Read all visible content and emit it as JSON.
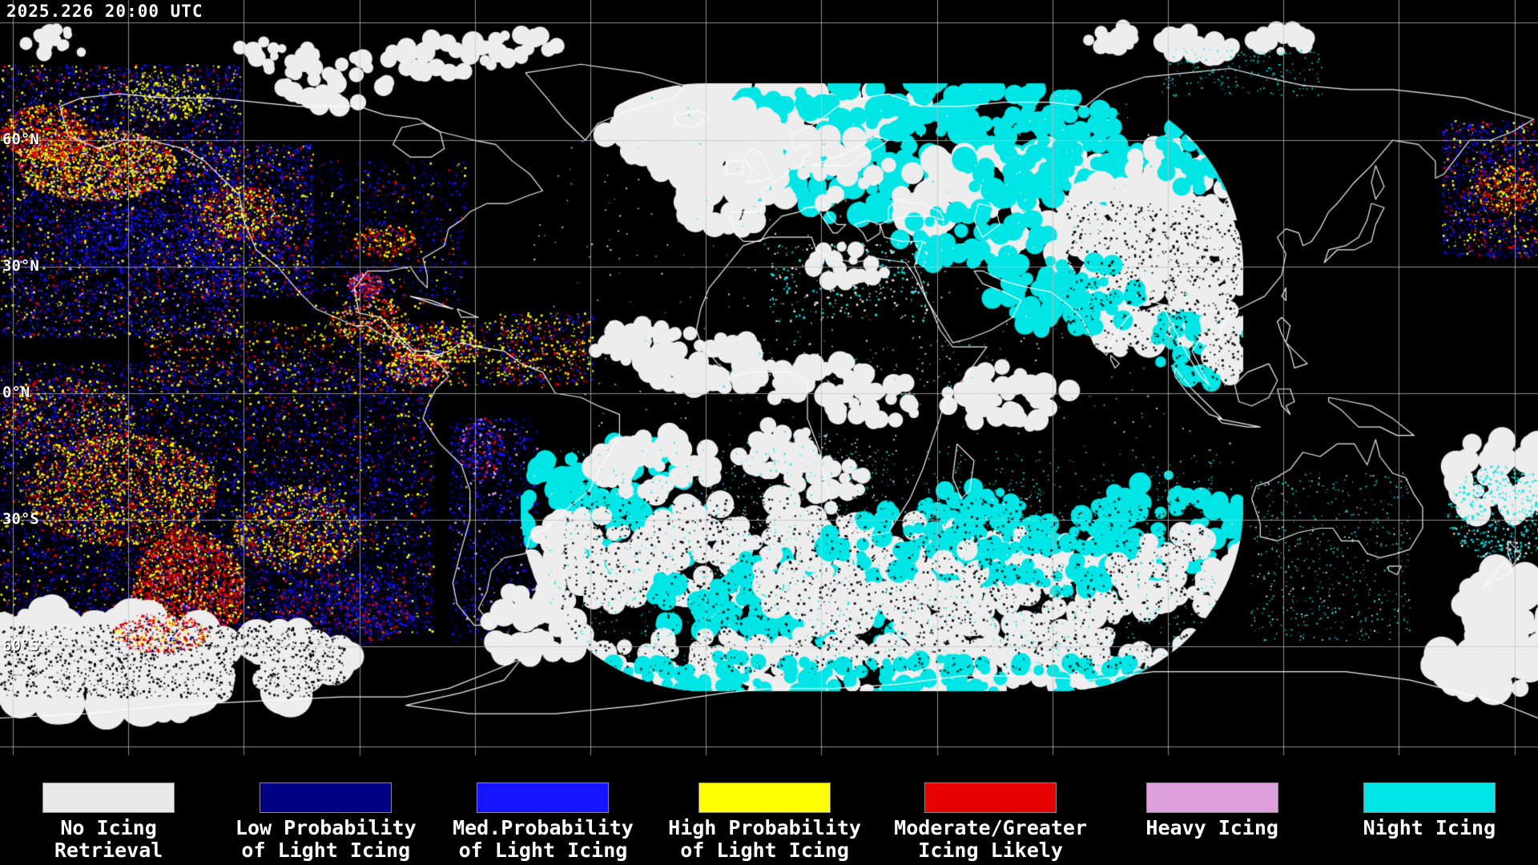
{
  "map": {
    "timestamp": "2025.226 20:00 UTC",
    "lat_labels": [
      "60°N",
      "30°N",
      "0°N",
      "30°S",
      "60°S"
    ]
  },
  "palette": {
    "background": "#000000",
    "coastline": "#ffffff",
    "grid": "#c0c0c0",
    "no_icing": "#e8e8e8",
    "low_prob": "#000085",
    "med_prob": "#1414ff",
    "high_prob": "#ffff00",
    "moderate": "#e60000",
    "heavy": "#dda0dd",
    "night": "#00e5e5"
  },
  "legend": {
    "items": [
      {
        "id": "no-icing",
        "line1": "No Icing",
        "line2": "Retrieval",
        "color": "#e8e8e8"
      },
      {
        "id": "low-prob",
        "line1": "Low Probability",
        "line2": "of Light Icing",
        "color": "#000085"
      },
      {
        "id": "med-prob",
        "line1": "Med.Probability",
        "line2": "of Light Icing",
        "color": "#1414ff"
      },
      {
        "id": "high-prob",
        "line1": "High Probability",
        "line2": "of Light Icing",
        "color": "#ffff00"
      },
      {
        "id": "moderate-icing",
        "line1": "Moderate/Greater",
        "line2": "Icing Likely",
        "color": "#e60000"
      },
      {
        "id": "heavy-icing",
        "line1": "Heavy Icing",
        "line2": "",
        "color": "#dda0dd"
      },
      {
        "id": "night-icing",
        "line1": "Night Icing",
        "line2": "",
        "color": "#00e5e5"
      }
    ]
  }
}
